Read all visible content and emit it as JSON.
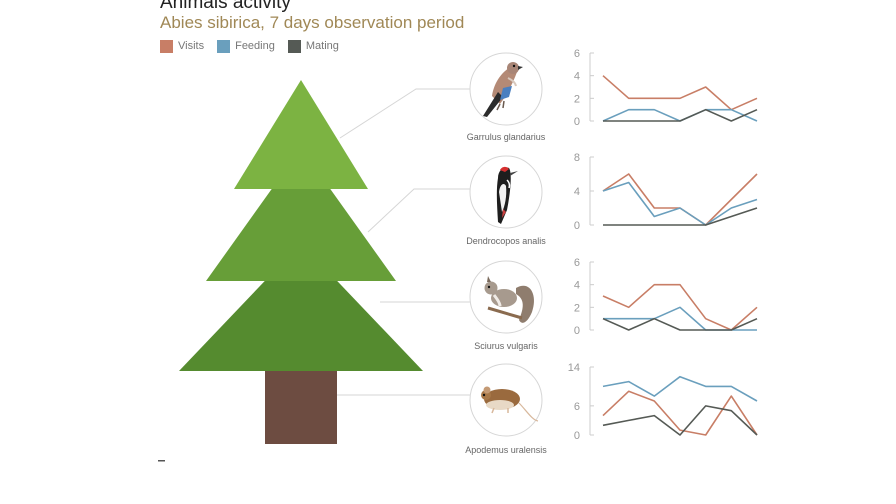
{
  "title": "Animals activity",
  "subtitle": "Abies sibirica, 7 days observation period",
  "colors": {
    "visits": "#c87e66",
    "feeding": "#6a9fbd",
    "mating": "#555a55",
    "tree_top": "#7cb342",
    "tree_middle": "#679e38",
    "tree_bottom": "#558b2f",
    "trunk": "#6d4c41"
  },
  "legend": [
    {
      "label": "Visits",
      "color": "#c87e66"
    },
    {
      "label": "Feeding",
      "color": "#6a9fbd"
    },
    {
      "label": "Mating",
      "color": "#555a55"
    }
  ],
  "chart_data": [
    {
      "type": "line",
      "species": "Garrulus glandarius",
      "icon": "jay-bird-icon",
      "x": [
        1,
        2,
        3,
        4,
        5,
        6,
        7
      ],
      "ylim": [
        0,
        6
      ],
      "yticks": [
        0,
        2,
        4,
        6
      ],
      "series": [
        {
          "name": "Visits",
          "values": [
            4,
            2,
            2,
            2,
            3,
            1,
            2
          ]
        },
        {
          "name": "Feeding",
          "values": [
            0,
            1,
            1,
            0,
            1,
            1,
            0
          ]
        },
        {
          "name": "Mating",
          "values": [
            0,
            0,
            0,
            0,
            1,
            0,
            1
          ]
        }
      ]
    },
    {
      "type": "line",
      "species": "Dendrocopos analis",
      "icon": "woodpecker-icon",
      "x": [
        1,
        2,
        3,
        4,
        5,
        6,
        7
      ],
      "ylim": [
        0,
        8
      ],
      "yticks": [
        0,
        4,
        8
      ],
      "series": [
        {
          "name": "Visits",
          "values": [
            4,
            6,
            2,
            2,
            0,
            3,
            6
          ]
        },
        {
          "name": "Feeding",
          "values": [
            4,
            5,
            1,
            2,
            0,
            2,
            3
          ]
        },
        {
          "name": "Mating",
          "values": [
            0,
            0,
            0,
            0,
            0,
            1,
            2
          ]
        }
      ]
    },
    {
      "type": "line",
      "species": "Sciurus vulgaris",
      "icon": "squirrel-icon",
      "x": [
        1,
        2,
        3,
        4,
        5,
        6,
        7
      ],
      "ylim": [
        0,
        6
      ],
      "yticks": [
        0,
        2,
        4,
        6
      ],
      "series": [
        {
          "name": "Visits",
          "values": [
            3,
            2,
            4,
            4,
            1,
            0,
            2
          ]
        },
        {
          "name": "Feeding",
          "values": [
            1,
            1,
            1,
            2,
            0,
            0,
            0
          ]
        },
        {
          "name": "Mating",
          "values": [
            1,
            0,
            1,
            0,
            0,
            0,
            1
          ]
        }
      ]
    },
    {
      "type": "line",
      "species": "Apodemus uralensis",
      "icon": "mouse-icon",
      "x": [
        1,
        2,
        3,
        4,
        5,
        6,
        7
      ],
      "ylim": [
        0,
        14
      ],
      "yticks": [
        0,
        6,
        14
      ],
      "series": [
        {
          "name": "Visits",
          "values": [
            4,
            9,
            7,
            1,
            0,
            8,
            0
          ]
        },
        {
          "name": "Feeding",
          "values": [
            10,
            11,
            8,
            12,
            10,
            10,
            7
          ]
        },
        {
          "name": "Mating",
          "values": [
            2,
            3,
            4,
            0,
            6,
            5,
            0
          ]
        }
      ]
    }
  ]
}
